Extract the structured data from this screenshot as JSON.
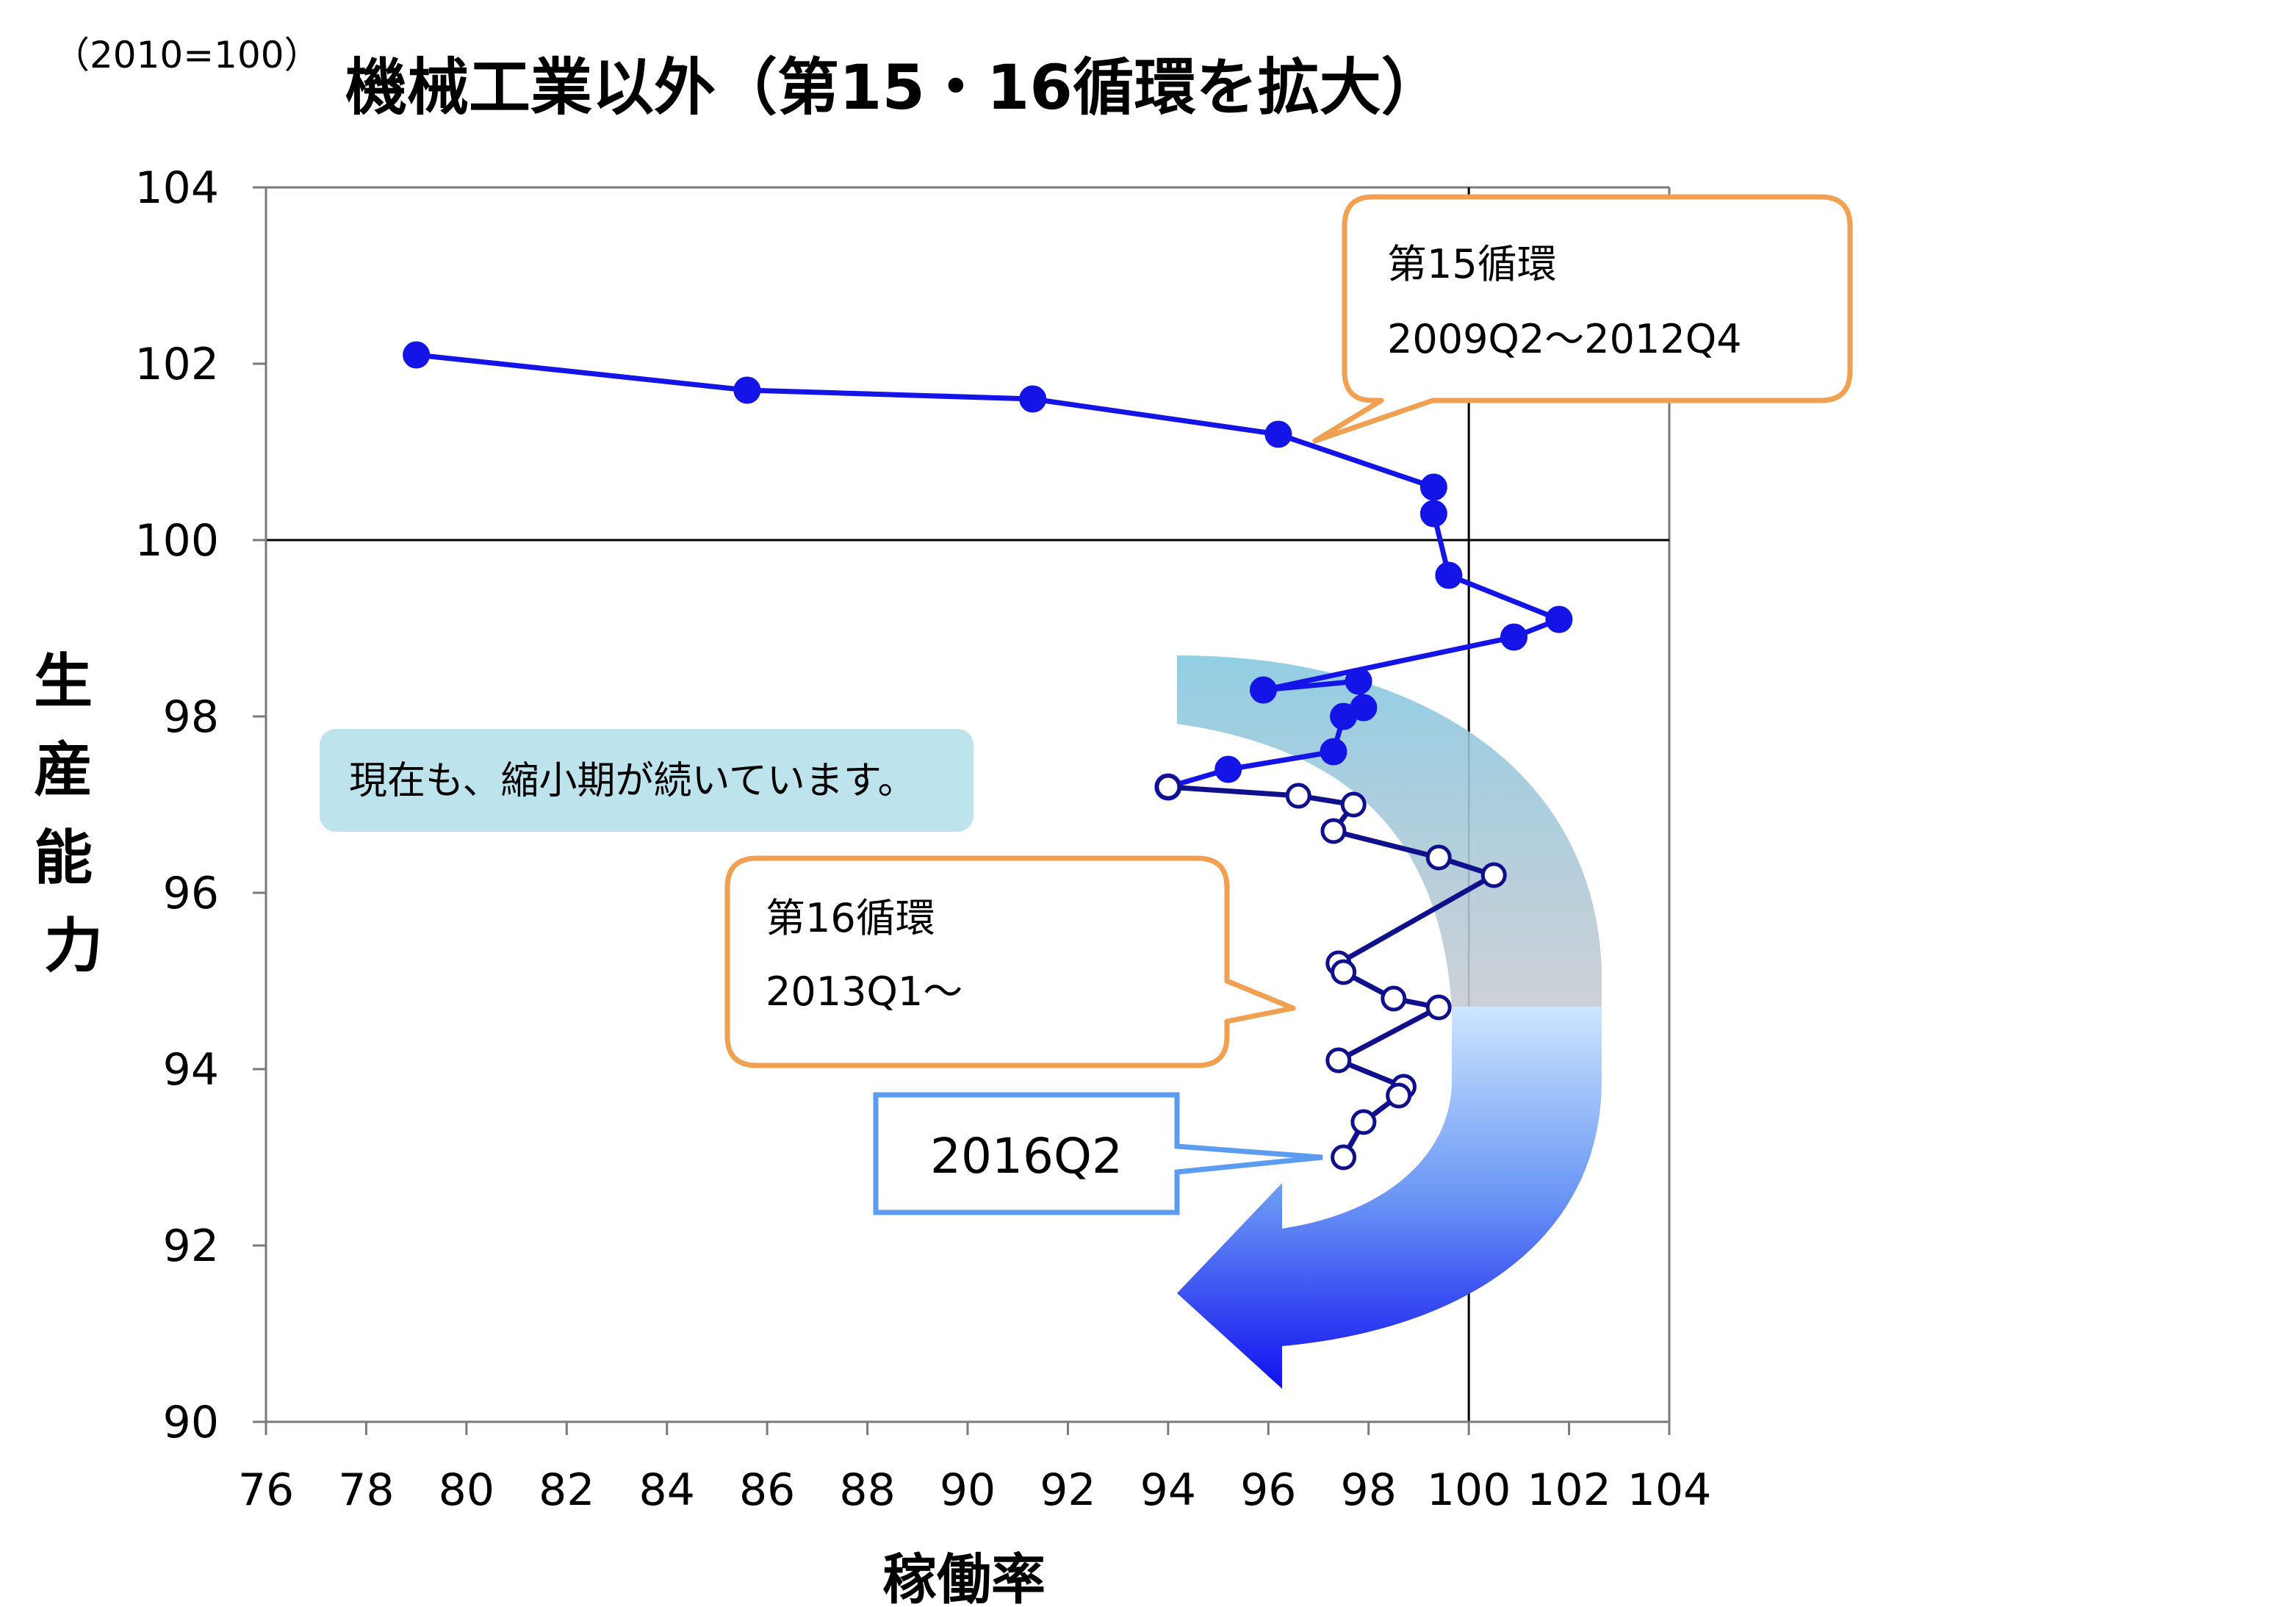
{
  "chart_data": {
    "type": "line",
    "title": "機械工業以外（第15・16循環を拡大）",
    "index_note": "（2010=100）",
    "xlabel": "稼働率",
    "ylabel": "生産能力",
    "xlim": [
      76,
      104
    ],
    "ylim": [
      90,
      104
    ],
    "xticks": [
      76,
      78,
      80,
      82,
      84,
      86,
      88,
      90,
      92,
      94,
      96,
      98,
      100,
      102,
      104
    ],
    "yticks": [
      90,
      92,
      94,
      96,
      98,
      100,
      102,
      104
    ],
    "reference_lines": {
      "x": 100,
      "y": 100
    },
    "grid": false,
    "series": [
      {
        "color": "#1414e6",
        "marker": "filled",
        "x": [
          79.0,
          85.6,
          91.3,
          96.2,
          99.3,
          99.3,
          99.6,
          101.8,
          100.9,
          95.9,
          97.8,
          97.9,
          97.5,
          97.3,
          95.2,
          94.0
        ],
        "y": [
          102.1,
          101.7,
          101.6,
          101.2,
          100.6,
          100.3,
          99.6,
          99.1,
          98.9,
          98.3,
          98.4,
          98.1,
          98.0,
          97.6,
          97.4,
          97.2
        ]
      },
      {
        "color": "#10108c",
        "marker": "open",
        "x": [
          94.0,
          96.6,
          97.7,
          97.3,
          99.4,
          100.5,
          97.4,
          97.5,
          98.5,
          99.4,
          97.4,
          98.7,
          98.6,
          97.9,
          97.5
        ],
        "y": [
          97.2,
          97.1,
          97.0,
          96.7,
          96.4,
          96.2,
          95.2,
          95.1,
          94.8,
          94.7,
          94.1,
          93.8,
          93.7,
          93.4,
          93.0
        ]
      }
    ]
  },
  "callouts": {
    "cycle15": {
      "line1": "第15循環",
      "line2": "2009Q2〜2012Q4"
    },
    "cycle16": {
      "line1": "第16循環",
      "line2": "2013Q1〜"
    },
    "latest": {
      "label": "2016Q2"
    },
    "note": {
      "text": "現在も、縮小期が続いています。"
    }
  },
  "colors": {
    "axis": "#000000",
    "callout_border": "#f0a050",
    "latest_border": "#5b9bf0",
    "note_fill": "#bde3ec",
    "arrow_top": "#87c8e0",
    "arrow_bottom": "#1010f0"
  }
}
